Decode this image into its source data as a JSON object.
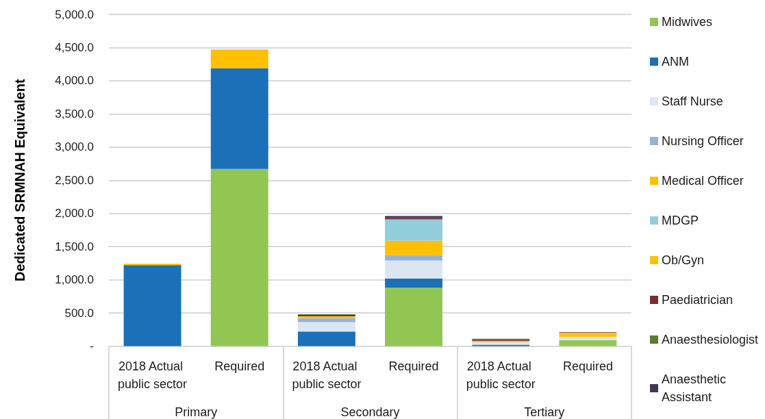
{
  "chart_data": {
    "type": "bar",
    "stacked": true,
    "ylabel": "Dedicated SRMNAH Equivalent",
    "categories": [
      "2018 Actual public sector",
      "Required",
      "2018 Actual public sector",
      "Required",
      "2018 Actual public sector",
      "Required"
    ],
    "annotations": [
      "Primary",
      "Secondary",
      "Tertiary"
    ],
    "series": [
      {
        "name": "Midwives",
        "color": "#92c653",
        "values": [
          null,
          2670,
          null,
          880,
          null,
          90
        ]
      },
      {
        "name": "ANM",
        "color": "#1b70b8",
        "values": [
          1220,
          1520,
          220,
          140,
          20,
          null
        ]
      },
      {
        "name": "Staff Nurse",
        "color": "#dce6f2",
        "values": [
          null,
          null,
          140,
          270,
          40,
          50
        ]
      },
      {
        "name": "Nursing Officer",
        "color": "#95b3d7",
        "values": [
          null,
          null,
          60,
          80,
          null,
          null
        ]
      },
      {
        "name": "Medical Officer",
        "color": "#ffc000",
        "values": [
          20,
          280,
          20,
          220,
          20,
          null
        ]
      },
      {
        "name": "MDGP",
        "color": "#92cddc",
        "values": [
          null,
          null,
          null,
          320,
          null,
          null
        ]
      },
      {
        "name": "Ob/Gyn",
        "color": "#fdc20e",
        "values": [
          null,
          null,
          10,
          null,
          null,
          60
        ]
      },
      {
        "name": "Paediatrician",
        "color": "#7b2c2c",
        "values": [
          null,
          null,
          20,
          20,
          20,
          10
        ]
      },
      {
        "name": "Anaesthesiologist",
        "color": "#5a7a32",
        "values": [
          null,
          null,
          10,
          null,
          10,
          null
        ]
      },
      {
        "name": "Anaesthetic Assistant",
        "color": "#433559",
        "values": [
          null,
          null,
          null,
          30,
          null,
          null
        ]
      }
    ],
    "ylim": [
      0,
      5000
    ],
    "yticks": [
      {
        "value": 0,
        "label": "-"
      },
      {
        "value": 500,
        "label": "500.0"
      },
      {
        "value": 1000,
        "label": "1,000.0"
      },
      {
        "value": 1500,
        "label": "1,500.0"
      },
      {
        "value": 2000,
        "label": "2,000.0"
      },
      {
        "value": 2500,
        "label": "2,500.0"
      },
      {
        "value": 3000,
        "label": "3,000.0"
      },
      {
        "value": 3500,
        "label": "3,500.0"
      },
      {
        "value": 4000,
        "label": "4,000.0"
      },
      {
        "value": 4500,
        "label": "4,500.0"
      },
      {
        "value": 5000,
        "label": "5,000.0"
      }
    ],
    "grid": "y",
    "legend": "right"
  }
}
